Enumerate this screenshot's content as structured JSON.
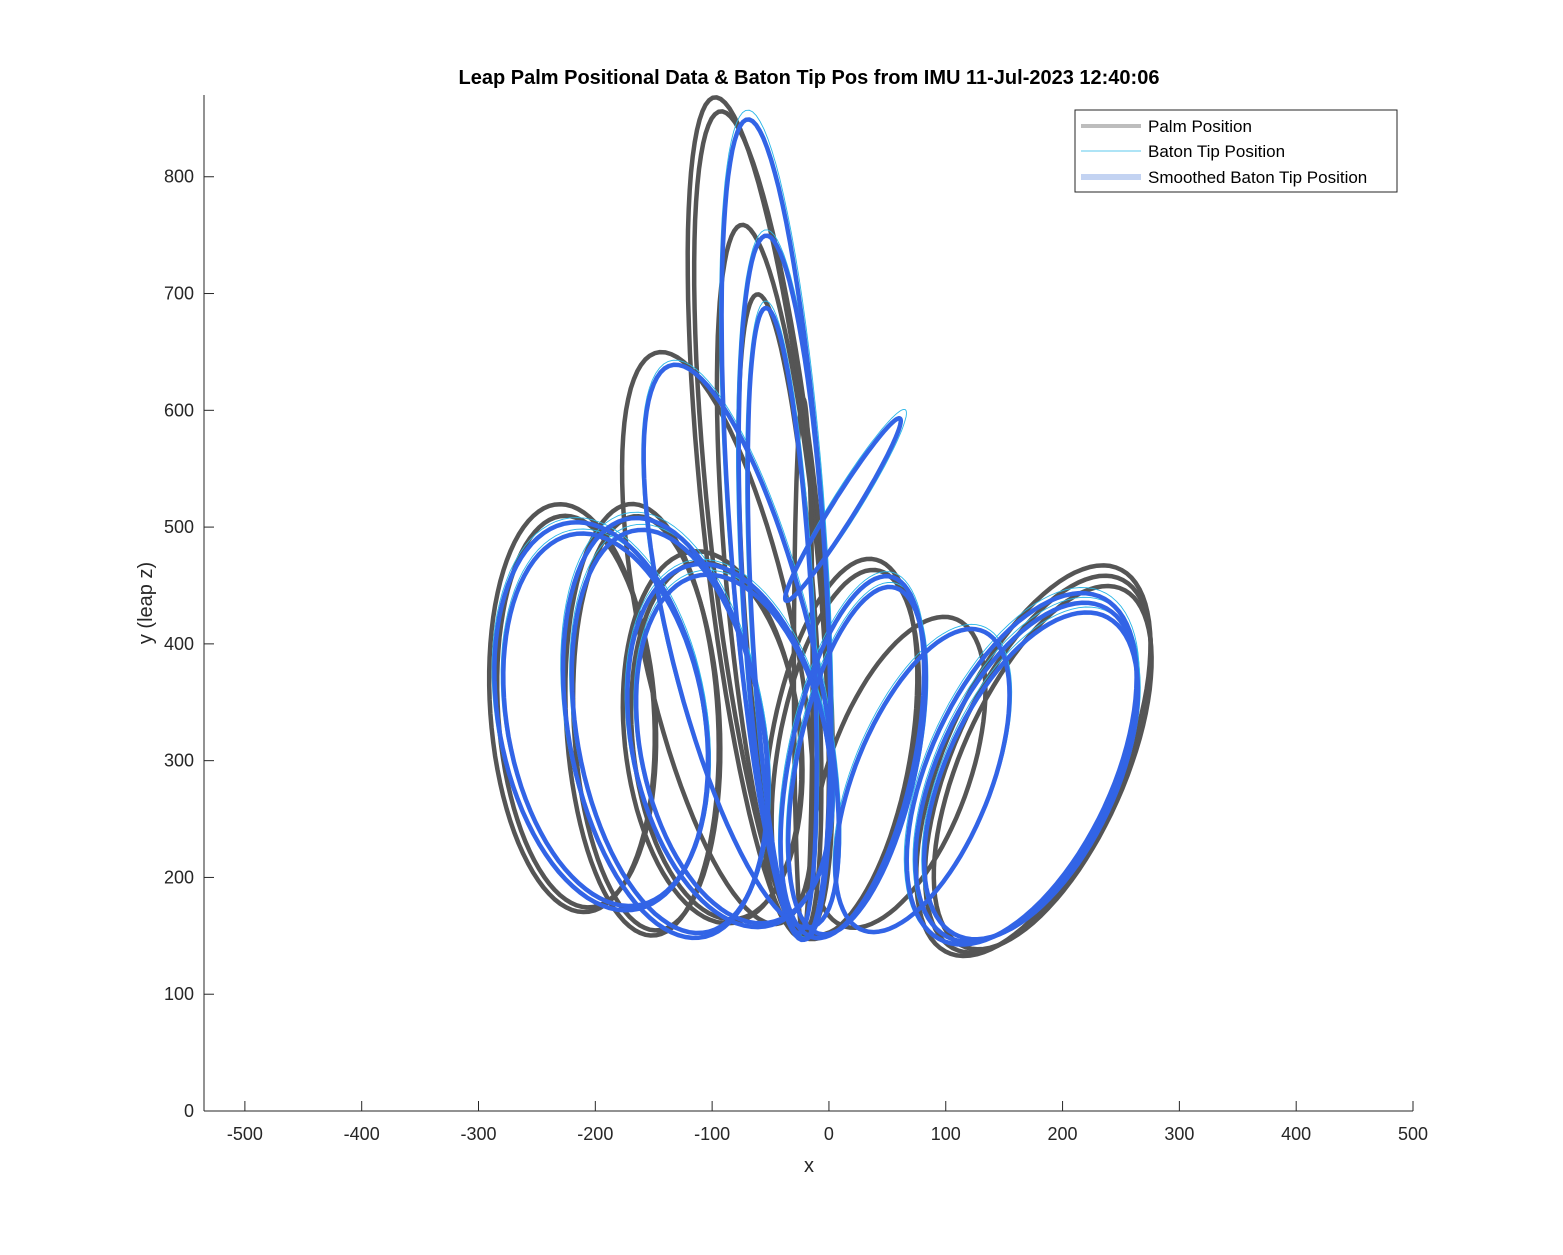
{
  "chart_data": {
    "type": "line",
    "title": "Leap Palm Positional Data & Baton Tip Pos from IMU 11-Jul-2023 12:40:06",
    "xlabel": "x",
    "ylabel": "y (leap z)",
    "xlim": [
      -535,
      500
    ],
    "ylim": [
      0,
      870
    ],
    "xticks": [
      -500,
      -400,
      -300,
      -200,
      -100,
      0,
      100,
      200,
      300,
      400,
      500
    ],
    "yticks": [
      0,
      100,
      200,
      300,
      400,
      500,
      600,
      700,
      800
    ],
    "grid": false,
    "legend_position": "top-right",
    "series": [
      {
        "name": "Palm Position",
        "color": "#555555",
        "legend_color": "#bdbdbd",
        "style": "thick",
        "loops": [
          {
            "cx": -60,
            "cy": 508,
            "rx": 48,
            "ry": 362,
            "rot": 6,
            "n": 2,
            "dr": 0.025
          },
          {
            "cx": -48,
            "cy": 455,
            "rx": 40,
            "ry": 305,
            "rot": 5,
            "n": 1,
            "dr": 0
          },
          {
            "cx": -42,
            "cy": 425,
            "rx": 30,
            "ry": 275,
            "rot": 4,
            "n": 1,
            "dr": 0
          },
          {
            "cx": -95,
            "cy": 405,
            "rx": 65,
            "ry": 250,
            "rot": 12,
            "n": 1,
            "dr": 0
          },
          {
            "cx": -220,
            "cy": 345,
            "rx": 70,
            "ry": 175,
            "rot": 4,
            "n": 2,
            "dr": 0.04
          },
          {
            "cx": -160,
            "cy": 335,
            "rx": 65,
            "ry": 185,
            "rot": 3,
            "n": 2,
            "dr": 0.04
          },
          {
            "cx": -100,
            "cy": 320,
            "rx": 75,
            "ry": 160,
            "rot": 6,
            "n": 2,
            "dr": 0.04
          },
          {
            "cx": 10,
            "cy": 310,
            "rx": 60,
            "ry": 165,
            "rot": -10,
            "n": 2,
            "dr": 0.04
          },
          {
            "cx": 60,
            "cy": 290,
            "rx": 60,
            "ry": 140,
            "rot": -20,
            "n": 1,
            "dr": 0
          },
          {
            "cx": 175,
            "cy": 300,
            "rx": 75,
            "ry": 180,
            "rot": -24,
            "n": 3,
            "dr": 0.035
          },
          {
            "cx": -22,
            "cy": 380,
            "rx": 8,
            "ry": 230,
            "rot": 0,
            "n": 1,
            "dr": 0
          }
        ]
      },
      {
        "name": "Baton Tip Position",
        "color": "#29b6e8",
        "legend_color": "#29b6e8",
        "style": "thin",
        "loops": [
          {
            "cx": -45,
            "cy": 503,
            "rx": 42,
            "ry": 355,
            "rot": 4,
            "n": 1,
            "dr": 0
          },
          {
            "cx": -38,
            "cy": 450,
            "rx": 38,
            "ry": 305,
            "rot": 3,
            "n": 1,
            "dr": 0
          },
          {
            "cx": -40,
            "cy": 422,
            "rx": 28,
            "ry": 272,
            "rot": 3,
            "n": 1,
            "dr": 0
          },
          {
            "cx": -75,
            "cy": 400,
            "rx": 62,
            "ry": 250,
            "rot": 14,
            "n": 1,
            "dr": 0
          },
          {
            "cx": -195,
            "cy": 340,
            "rx": 90,
            "ry": 170,
            "rot": 10,
            "n": 2,
            "dr": 0.04
          },
          {
            "cx": -140,
            "cy": 330,
            "rx": 85,
            "ry": 185,
            "rot": 10,
            "n": 2,
            "dr": 0.04
          },
          {
            "cx": -85,
            "cy": 315,
            "rx": 85,
            "ry": 160,
            "rot": 12,
            "n": 2,
            "dr": 0.04
          },
          {
            "cx": 20,
            "cy": 305,
            "rx": 55,
            "ry": 160,
            "rot": -12,
            "n": 2,
            "dr": 0.04
          },
          {
            "cx": 80,
            "cy": 285,
            "rx": 60,
            "ry": 140,
            "rot": -22,
            "n": 1,
            "dr": 0
          },
          {
            "cx": 165,
            "cy": 295,
            "rx": 80,
            "ry": 165,
            "rot": -25,
            "n": 3,
            "dr": 0.035
          },
          {
            "cx": 15,
            "cy": 520,
            "rx": 12,
            "ry": 95,
            "rot": -32,
            "n": 1,
            "dr": 0
          }
        ]
      },
      {
        "name": "Smoothed Baton Tip Position",
        "color": "#3264e6",
        "legend_color": "#c3d3f2",
        "style": "thick",
        "loops": [
          {
            "cx": -45,
            "cy": 498,
            "rx": 40,
            "ry": 352,
            "rot": 4,
            "n": 1,
            "dr": 0
          },
          {
            "cx": -38,
            "cy": 448,
            "rx": 36,
            "ry": 302,
            "rot": 3,
            "n": 1,
            "dr": 0
          },
          {
            "cx": -40,
            "cy": 420,
            "rx": 26,
            "ry": 268,
            "rot": 3,
            "n": 1,
            "dr": 0
          },
          {
            "cx": -75,
            "cy": 398,
            "rx": 60,
            "ry": 248,
            "rot": 14,
            "n": 1,
            "dr": 0
          },
          {
            "cx": -195,
            "cy": 338,
            "rx": 88,
            "ry": 168,
            "rot": 10,
            "n": 2,
            "dr": 0.04
          },
          {
            "cx": -140,
            "cy": 328,
            "rx": 83,
            "ry": 182,
            "rot": 10,
            "n": 2,
            "dr": 0.04
          },
          {
            "cx": -85,
            "cy": 313,
            "rx": 83,
            "ry": 158,
            "rot": 12,
            "n": 2,
            "dr": 0.04
          },
          {
            "cx": 20,
            "cy": 303,
            "rx": 53,
            "ry": 158,
            "rot": -12,
            "n": 2,
            "dr": 0.04
          },
          {
            "cx": 80,
            "cy": 283,
            "rx": 58,
            "ry": 138,
            "rot": -22,
            "n": 1,
            "dr": 0
          },
          {
            "cx": 165,
            "cy": 293,
            "rx": 78,
            "ry": 162,
            "rot": -25,
            "n": 3,
            "dr": 0.035
          },
          {
            "cx": 12,
            "cy": 515,
            "rx": 10,
            "ry": 92,
            "rot": -32,
            "n": 1,
            "dr": 0
          }
        ]
      }
    ]
  }
}
